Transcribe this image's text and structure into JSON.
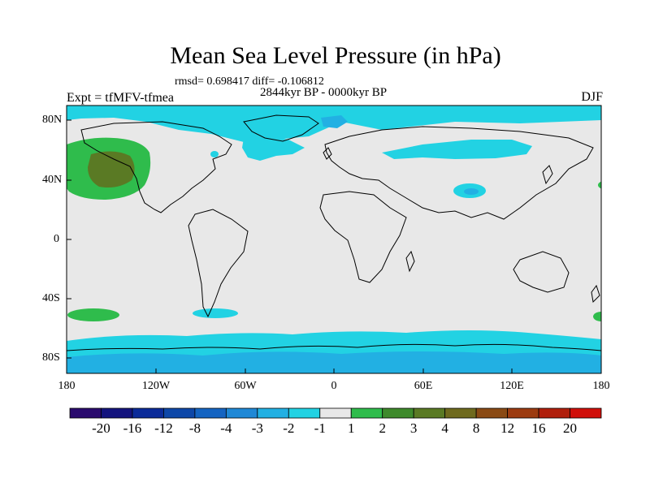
{
  "title": "Mean Sea Level Pressure (in hPa)",
  "stats": "rmsd= 0.698417 diff= -0.106812",
  "period": "2844kyr BP - 0000kyr BP",
  "expt": "Expt = tfMFV-tfmea",
  "season": "DJF",
  "lat_labels": [
    "80N",
    "40N",
    "0",
    "40S",
    "80S"
  ],
  "lon_labels": [
    "180",
    "120W",
    "60W",
    "0",
    "60E",
    "120E",
    "180"
  ],
  "colorbar": {
    "colors": [
      "#2a0a6e",
      "#14147e",
      "#0b2b99",
      "#0d47a8",
      "#1464c2",
      "#1f88d6",
      "#22b0e3",
      "#22d2e3",
      "#e8e8e8",
      "#2fbc4c",
      "#3e8a2c",
      "#5a7a24",
      "#6f6a1e",
      "#8a4a14",
      "#9c3b10",
      "#b01f0c",
      "#d00f0a"
    ],
    "labels": [
      "-20",
      "-16",
      "-12",
      "-8",
      "-4",
      "-3",
      "-2",
      "-1",
      "1",
      "2",
      "3",
      "4",
      "8",
      "12",
      "16",
      "20"
    ]
  },
  "colors": {
    "background": "#e8e8e8",
    "cyan": "#22d2e3",
    "blue": "#22b0e3",
    "green": "#2fbc4c",
    "olive": "#5a7a24"
  }
}
